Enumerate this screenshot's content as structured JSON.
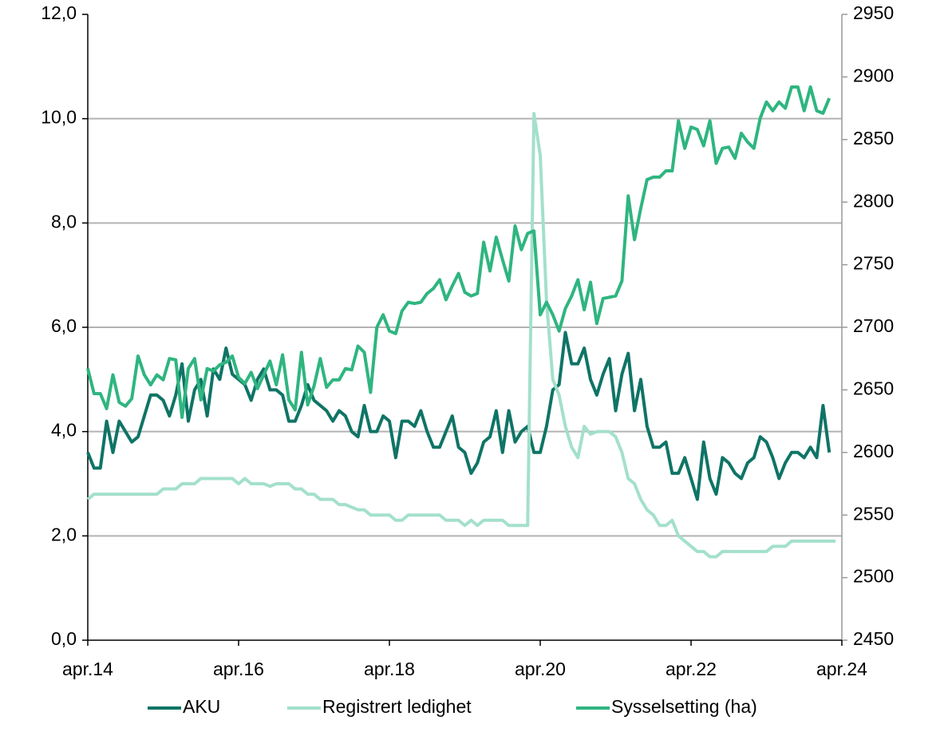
{
  "chart_data": {
    "type": "line",
    "categories": [
      "apr.14",
      null,
      null,
      null,
      null,
      null,
      null,
      null,
      null,
      null,
      null,
      null,
      null,
      null,
      null,
      null,
      null,
      null,
      null,
      null,
      null,
      null,
      null,
      null,
      "apr.16",
      null,
      null,
      null,
      null,
      null,
      null,
      null,
      null,
      null,
      null,
      null,
      null,
      null,
      null,
      null,
      null,
      null,
      null,
      null,
      null,
      null,
      null,
      null,
      "apr.18",
      null,
      null,
      null,
      null,
      null,
      null,
      null,
      null,
      null,
      null,
      null,
      null,
      null,
      null,
      null,
      null,
      null,
      null,
      null,
      null,
      null,
      null,
      null,
      "apr.20",
      null,
      null,
      null,
      null,
      null,
      null,
      null,
      null,
      null,
      null,
      null,
      null,
      null,
      null,
      null,
      null,
      null,
      null,
      null,
      null,
      null,
      null,
      null,
      "apr.22",
      null,
      null,
      null,
      null,
      null,
      null,
      null,
      null,
      null,
      null,
      null,
      null,
      null,
      null,
      null,
      null,
      null,
      null,
      null,
      null,
      null,
      null,
      null,
      "apr.24"
    ],
    "series": [
      {
        "name": "AKU",
        "color": "#0f7466",
        "values": [
          3.6,
          3.3,
          3.3,
          4.2,
          3.6,
          4.2,
          4.0,
          3.8,
          3.9,
          4.3,
          4.7,
          4.7,
          4.6,
          4.3,
          4.7,
          5.3,
          4.2,
          4.8,
          5.0,
          4.3,
          5.2,
          5.0,
          5.6,
          5.1,
          5.0,
          4.9,
          4.6,
          5.0,
          5.2,
          4.8,
          4.8,
          4.7,
          4.2,
          4.2,
          4.5,
          4.9,
          4.6,
          4.5,
          4.4,
          4.2,
          4.4,
          4.3,
          4.0,
          3.9,
          4.5,
          4.0,
          4.0,
          4.3,
          4.2,
          3.5,
          4.2,
          4.2,
          4.1,
          4.4,
          4.0,
          3.7,
          3.7,
          4.0,
          4.3,
          3.7,
          3.6,
          3.2,
          3.4,
          3.8,
          3.9,
          4.4,
          3.6,
          4.4,
          3.8,
          4.0,
          4.1,
          3.6,
          3.6,
          4.1,
          4.8,
          4.9,
          5.9,
          5.3,
          5.3,
          5.6,
          5.0,
          4.7,
          5.1,
          5.4,
          4.4,
          5.1,
          5.5,
          4.4,
          5.0,
          4.1,
          3.7,
          3.7,
          3.8,
          3.2,
          3.2,
          3.5,
          3.1,
          2.7,
          3.8,
          3.1,
          2.8,
          3.5,
          3.4,
          3.2,
          3.1,
          3.4,
          3.5,
          3.9,
          3.8,
          3.5,
          3.1,
          3.4,
          3.6,
          3.6,
          3.5,
          3.7,
          3.5,
          4.5,
          3.6,
          null,
          null
        ]
      },
      {
        "name": "Registrert ledighet",
        "color": "#a3e0cc",
        "values": [
          2.7,
          2.8,
          2.8,
          2.8,
          2.8,
          2.8,
          2.8,
          2.8,
          2.8,
          2.8,
          2.8,
          2.8,
          2.9,
          2.9,
          2.9,
          3.0,
          3.0,
          3.0,
          3.1,
          3.1,
          3.1,
          3.1,
          3.1,
          3.1,
          3.0,
          3.1,
          3.0,
          3.0,
          3.0,
          2.95,
          3.0,
          3.0,
          3.0,
          2.9,
          2.9,
          2.8,
          2.8,
          2.7,
          2.7,
          2.7,
          2.6,
          2.6,
          2.55,
          2.5,
          2.5,
          2.4,
          2.4,
          2.4,
          2.4,
          2.3,
          2.3,
          2.4,
          2.4,
          2.4,
          2.4,
          2.4,
          2.4,
          2.3,
          2.3,
          2.3,
          2.2,
          2.3,
          2.2,
          2.3,
          2.3,
          2.3,
          2.3,
          2.2,
          2.2,
          2.2,
          2.2,
          10.1,
          9.3,
          6.5,
          5.0,
          4.7,
          4.1,
          3.7,
          3.5,
          4.1,
          3.95,
          4.0,
          4.0,
          4.0,
          3.9,
          3.6,
          3.1,
          3.0,
          2.7,
          2.5,
          2.4,
          2.2,
          2.2,
          2.3,
          2.0,
          1.9,
          1.8,
          1.7,
          1.7,
          1.6,
          1.6,
          1.7,
          1.7,
          1.7,
          1.7,
          1.7,
          1.7,
          1.7,
          1.7,
          1.8,
          1.8,
          1.8,
          1.9,
          1.9,
          1.9,
          1.9,
          1.9,
          1.9,
          1.9,
          1.9,
          null
        ]
      },
      {
        "name": "Sysselsetting (ha)",
        "color": "#2fb580",
        "axis": "y2",
        "values": [
          2667,
          2647,
          2647,
          2635,
          2662,
          2640,
          2637,
          2643,
          2677,
          2662,
          2654,
          2662,
          2658,
          2675,
          2674,
          2628,
          2667,
          2675,
          2642,
          2667,
          2665,
          2670,
          2672,
          2677,
          2660,
          2655,
          2664,
          2651,
          2662,
          2673,
          2654,
          2678,
          2642,
          2634,
          2680,
          2638,
          2653,
          2675,
          2652,
          2658,
          2658,
          2667,
          2666,
          2685,
          2680,
          2648,
          2700,
          2710,
          2697,
          2695,
          2713,
          2720,
          2719,
          2720,
          2727,
          2731,
          2738,
          2722,
          2733,
          2743,
          2728,
          2725,
          2727,
          2768,
          2745,
          2772,
          2754,
          2737,
          2781,
          2762,
          2775,
          2777,
          2710,
          2720,
          2710,
          2697,
          2715,
          2725,
          2738,
          2714,
          2736,
          2703,
          2723,
          2724,
          2725,
          2737,
          2805,
          2770,
          2795,
          2818,
          2820,
          2820,
          2825,
          2825,
          2865,
          2843,
          2860,
          2858,
          2845,
          2865,
          2831,
          2843,
          2844,
          2835,
          2855,
          2848,
          2843,
          2867,
          2880,
          2873,
          2880,
          2875,
          2892,
          2892,
          2873,
          2892,
          2873,
          2871,
          2883,
          null,
          null
        ]
      }
    ],
    "ylim": [
      0,
      12
    ],
    "yticks": [
      {
        "value": 0,
        "label": "0,0"
      },
      {
        "value": 2,
        "label": "2,0"
      },
      {
        "value": 4,
        "label": "4,0"
      },
      {
        "value": 6,
        "label": "6,0"
      },
      {
        "value": 8,
        "label": "8,0"
      },
      {
        "value": 10,
        "label": "10,0"
      },
      {
        "value": 12,
        "label": "12,0"
      }
    ],
    "y2lim": [
      2450,
      2950
    ],
    "y2ticks": [
      2450,
      2500,
      2550,
      2600,
      2650,
      2700,
      2750,
      2800,
      2850,
      2900,
      2950
    ],
    "grid": true,
    "legend": "bottom"
  }
}
